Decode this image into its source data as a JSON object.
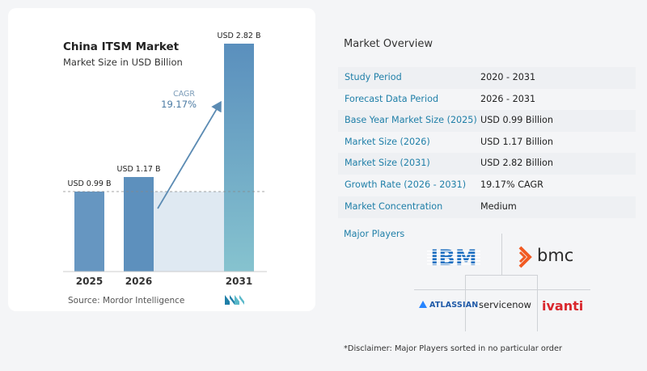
{
  "chart_data": {
    "type": "bar",
    "title": "China ITSM Market",
    "subtitle": "Market Size in USD Billion",
    "categories": [
      "2025",
      "2026",
      "2031"
    ],
    "values": [
      0.99,
      1.17,
      2.82
    ],
    "data_labels": [
      "USD 0.99 B",
      "USD 1.17 B",
      "USD 2.82 B"
    ],
    "ylim": [
      0,
      3
    ],
    "cagr_label": "CAGR",
    "cagr_value": "19.17%",
    "grid": false,
    "colors": {
      "bar_light": "#8fb8d4",
      "bar_dark": "#4b84b6",
      "cagr": "#5b8bb3",
      "band": "#dfe9f2"
    }
  },
  "source": "Source:  Mordor Intelligence",
  "overview": {
    "title": "Market Overview",
    "rows": [
      {
        "label": "Study Period",
        "value": "2020 - 2031"
      },
      {
        "label": "Forecast Data Period",
        "value": "2026 - 2031"
      },
      {
        "label": "Base Year Market Size (2025)",
        "value": "USD 0.99 Billion"
      },
      {
        "label": "Market Size (2026)",
        "value": "USD 1.17 Billion"
      },
      {
        "label": "Market Size (2031)",
        "value": "USD 2.82 Billion"
      },
      {
        "label": "Growth Rate (2026 - 2031)",
        "value": "19.17% CAGR"
      },
      {
        "label": "Market Concentration",
        "value": "Medium"
      }
    ]
  },
  "players": {
    "label": "Major Players",
    "logos": [
      "IBM",
      "bmc",
      "ATLASSIAN",
      "servicenow",
      "ivanti"
    ]
  },
  "disclaimer": "*Disclaimer: Major Players sorted in no particular order"
}
